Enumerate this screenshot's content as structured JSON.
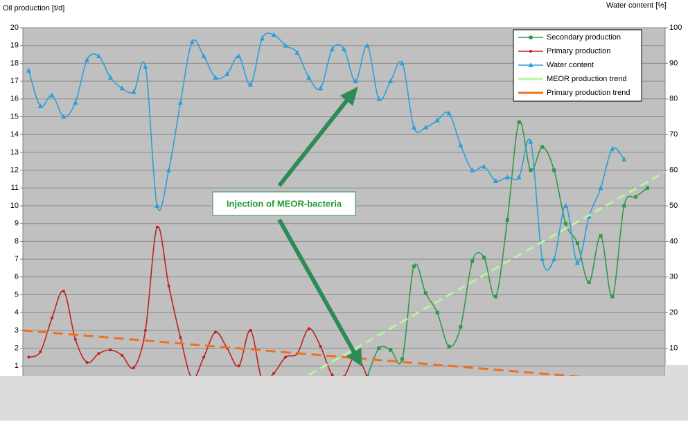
{
  "chart_data": {
    "type": "line",
    "y_label": "Oil production [t/d]",
    "y2_label": "Water content [%]",
    "annotation": "Injection of MEOR-bacteria",
    "categories": [
      null,
      null,
      null,
      null,
      null,
      null,
      null,
      null,
      null,
      null,
      null,
      null,
      null,
      null,
      null,
      null,
      null,
      null,
      null,
      null,
      null,
      null,
      null,
      null,
      null,
      null,
      null,
      null,
      null,
      null,
      null,
      null,
      null,
      null,
      null,
      null,
      null,
      null,
      null,
      null,
      null,
      null,
      null,
      null,
      null,
      null,
      null,
      null,
      null,
      null,
      null,
      null,
      null,
      null
    ],
    "ylim": [
      0,
      20
    ],
    "yticks": [
      1,
      2,
      3,
      4,
      5,
      6,
      7,
      8,
      9,
      10,
      11,
      12,
      13,
      14,
      15,
      16,
      17,
      18,
      19,
      20
    ],
    "y2lim": [
      0,
      100
    ],
    "y2ticks": [
      10,
      20,
      30,
      40,
      50,
      60,
      70,
      80,
      90,
      100
    ],
    "grid": true,
    "legend": "top-right",
    "series": [
      {
        "name": "Secondary production",
        "color": "#2e9a48",
        "marker": "square",
        "values": [
          null,
          null,
          null,
          null,
          null,
          null,
          null,
          null,
          null,
          null,
          null,
          null,
          null,
          null,
          null,
          null,
          null,
          null,
          null,
          null,
          null,
          null,
          null,
          null,
          null,
          null,
          null,
          null,
          null,
          0.4,
          2.0,
          1.9,
          1.4,
          6.6,
          5.1,
          4.0,
          2.1,
          3.2,
          6.9,
          7.1,
          4.9,
          9.2,
          14.7,
          12.0,
          13.3,
          12.0,
          9.0,
          7.9,
          5.7,
          8.3,
          4.9,
          10.0,
          10.5,
          11.0
        ]
      },
      {
        "name": "Primary production",
        "color": "#c0201f",
        "marker": "circle",
        "values": [
          1.5,
          1.8,
          3.7,
          5.2,
          2.5,
          1.2,
          1.7,
          1.9,
          1.6,
          0.9,
          3.0,
          8.8,
          5.5,
          2.6,
          0.3,
          1.5,
          2.9,
          2.0,
          1.0,
          3.0,
          0.2,
          0.6,
          1.5,
          1.7,
          3.1,
          2.1,
          0.5,
          0.4,
          1.6,
          0.4,
          null,
          null,
          null,
          null,
          null,
          null,
          null,
          null,
          null,
          null,
          null,
          null,
          null,
          null,
          null,
          null,
          null,
          null,
          null,
          null,
          null,
          null,
          null,
          null
        ]
      },
      {
        "name": "Water content",
        "color": "#2aa0d8",
        "marker": "triangle",
        "axis": "y2",
        "values": [
          88,
          78,
          81,
          75,
          79,
          91,
          92,
          86,
          83,
          82,
          89,
          50,
          60,
          79,
          96,
          92,
          86,
          87,
          92,
          84,
          97,
          98,
          95,
          93,
          86,
          83,
          94,
          94,
          85,
          95,
          80,
          85,
          90,
          72,
          72,
          74,
          76,
          67,
          60,
          61,
          57,
          58,
          58,
          68,
          35,
          35,
          50,
          34,
          47,
          55,
          66,
          63,
          null,
          null
        ]
      },
      {
        "name": "MEOR production trend",
        "color": "#b8f5a0",
        "dash": "12 7",
        "x": [
          24,
          54.5
        ],
        "values": [
          0.5,
          11.9
        ]
      },
      {
        "name": "Primary production trend",
        "color": "#f07020",
        "dash": "14 8",
        "x": [
          -0.5,
          54.5
        ],
        "values": [
          3.0,
          0
        ]
      }
    ]
  }
}
